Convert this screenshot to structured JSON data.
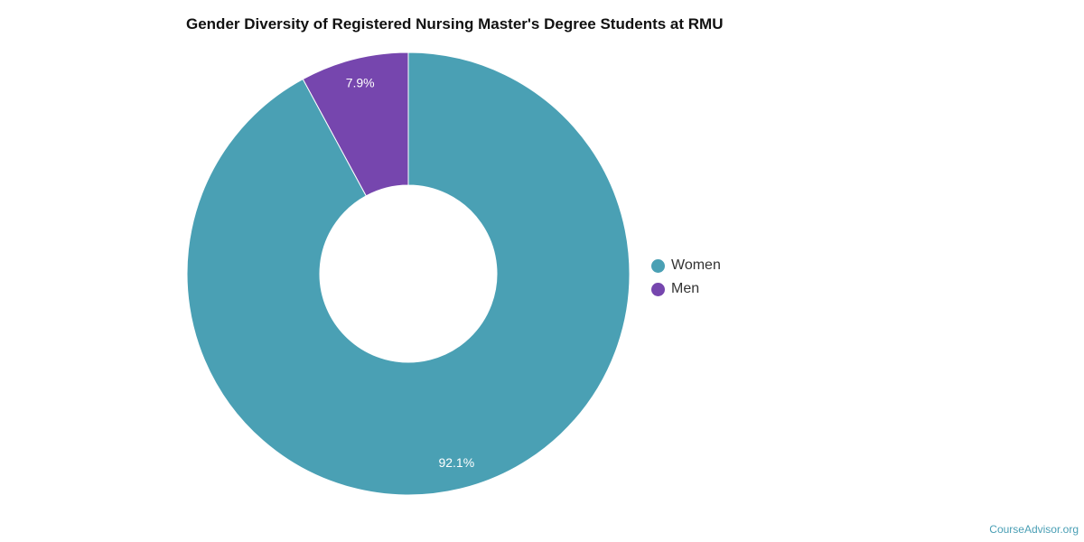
{
  "chart_data": {
    "type": "pie",
    "title": "Gender Diversity of Registered Nursing Master's Degree Students at RMU",
    "categories": [
      "Women",
      "Men"
    ],
    "values": [
      92.1,
      7.9
    ],
    "slice_labels": [
      "92.1%",
      "7.9%"
    ],
    "colors": [
      "#4aa0b4",
      "#7646ae"
    ],
    "donut": true,
    "legend": "right"
  },
  "watermark": "CourseAdvisor.org"
}
